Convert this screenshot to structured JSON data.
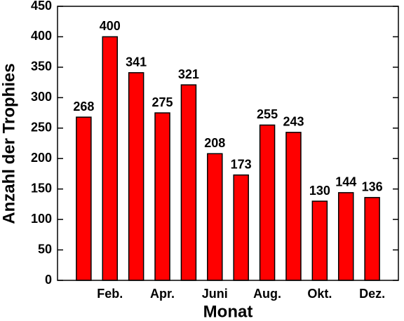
{
  "chart_data": {
    "type": "bar",
    "x_label": "Monat",
    "y_label": "Anzahl der Trophies",
    "categories": [
      null,
      "Feb.",
      null,
      "Apr.",
      null,
      "Juni",
      null,
      "Aug.",
      null,
      "Okt.",
      null,
      "Dez."
    ],
    "values": [
      268,
      400,
      341,
      275,
      321,
      208,
      173,
      255,
      243,
      130,
      144,
      136
    ],
    "color": "#ff0000",
    "ylim": [
      0,
      450
    ],
    "yticks": [
      0,
      50,
      100,
      150,
      200,
      250,
      300,
      350,
      400,
      450
    ],
    "grid": false
  }
}
